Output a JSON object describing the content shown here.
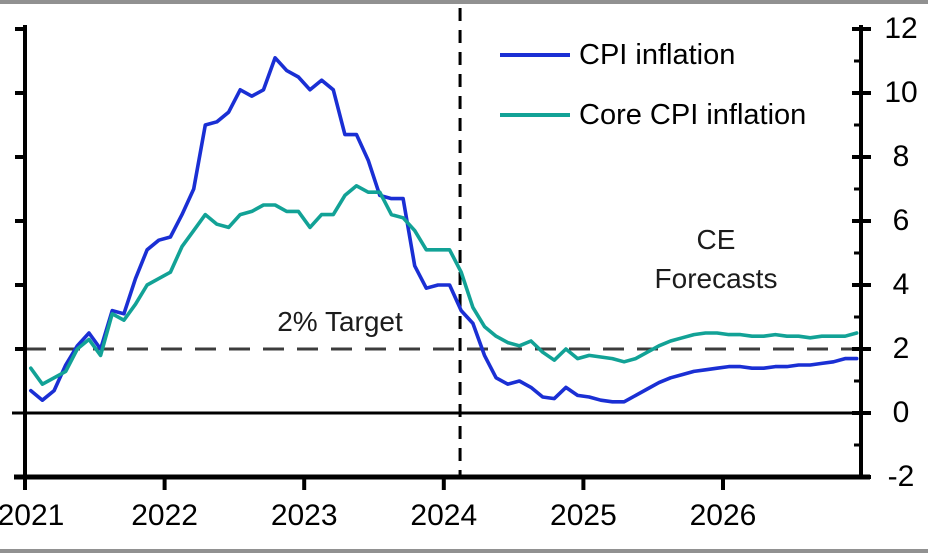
{
  "chart_data": {
    "type": "line",
    "title": "",
    "x_start": "2021-01",
    "x_frequency": "monthly",
    "x_tick_labels": [
      "2021",
      "2022",
      "2023",
      "2024",
      "2025",
      "2026"
    ],
    "y_ticks": [
      -2,
      0,
      2,
      4,
      6,
      8,
      10,
      12
    ],
    "y_minor_ticks": [
      -1,
      1,
      3,
      5,
      7,
      9,
      11
    ],
    "ylim": [
      -2,
      12
    ],
    "grid": "off",
    "legend_position": "top-center-inside",
    "axis_color": "#000000",
    "zero_line_value": 0,
    "target_line": {
      "value": 2,
      "label": "2% Target",
      "color": "#3c3c3c",
      "style": "dashed"
    },
    "forecast_divider": {
      "month_index": 36.9,
      "style": "dashed",
      "color": "#000000"
    },
    "forecast_annotation": [
      "CE",
      "Forecasts"
    ],
    "series": [
      {
        "name": "CPI inflation",
        "color": "#1a2fd4",
        "values": [
          0.7,
          0.4,
          0.7,
          1.5,
          2.1,
          2.5,
          2.0,
          3.2,
          3.1,
          4.2,
          5.1,
          5.4,
          5.5,
          6.2,
          7.0,
          9.0,
          9.1,
          9.4,
          10.1,
          9.9,
          10.1,
          11.1,
          10.7,
          10.5,
          10.1,
          10.4,
          10.1,
          8.7,
          8.7,
          7.9,
          6.8,
          6.7,
          6.7,
          4.6,
          3.9,
          4.0,
          4.0,
          3.2,
          2.8,
          1.8,
          1.1,
          0.9,
          1.0,
          0.8,
          0.5,
          0.45,
          0.8,
          0.55,
          0.5,
          0.4,
          0.35,
          0.35,
          0.55,
          0.75,
          0.95,
          1.1,
          1.2,
          1.3,
          1.35,
          1.4,
          1.45,
          1.45,
          1.4,
          1.4,
          1.45,
          1.45,
          1.5,
          1.5,
          1.55,
          1.6,
          1.7,
          1.7
        ]
      },
      {
        "name": "Core CPI inflation",
        "color": "#12a296",
        "values": [
          1.4,
          0.9,
          1.1,
          1.3,
          2.0,
          2.3,
          1.8,
          3.1,
          2.9,
          3.4,
          4.0,
          4.2,
          4.4,
          5.2,
          5.7,
          6.2,
          5.9,
          5.8,
          6.2,
          6.3,
          6.5,
          6.5,
          6.3,
          6.3,
          5.8,
          6.2,
          6.2,
          6.8,
          7.1,
          6.9,
          6.9,
          6.2,
          6.1,
          5.7,
          5.1,
          5.1,
          5.1,
          4.4,
          3.3,
          2.7,
          2.4,
          2.2,
          2.1,
          2.25,
          1.9,
          1.65,
          2.0,
          1.7,
          1.8,
          1.75,
          1.7,
          1.6,
          1.7,
          1.9,
          2.1,
          2.25,
          2.35,
          2.45,
          2.5,
          2.5,
          2.45,
          2.45,
          2.4,
          2.4,
          2.45,
          2.4,
          2.4,
          2.35,
          2.4,
          2.4,
          2.4,
          2.5
        ]
      }
    ]
  }
}
